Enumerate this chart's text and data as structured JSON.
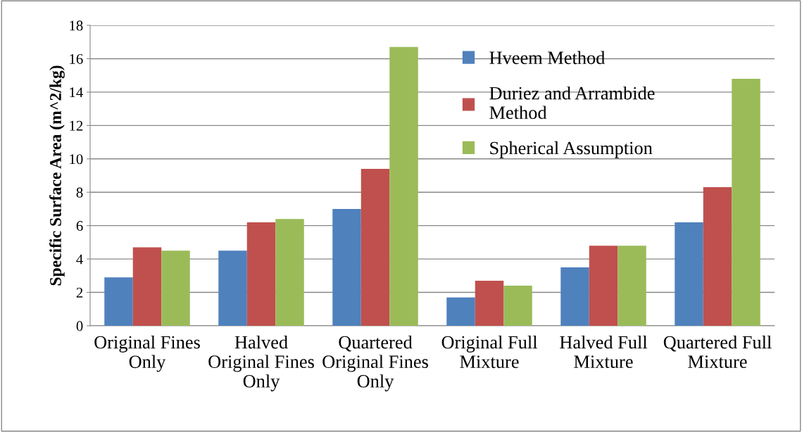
{
  "chart_data": {
    "type": "bar",
    "ylabel": "Specific Surface Area (m^2/kg)",
    "categories": [
      "Original Fines Only",
      "Halved Original Fines Only",
      "Quartered Original Fines Only",
      "Original Full Mixture",
      "Halved Full Mixture",
      "Quartered Full Mixture"
    ],
    "series": [
      {
        "name": "Hveem Method",
        "color": "#4f81bd",
        "values": [
          2.9,
          4.5,
          7.0,
          1.7,
          3.5,
          6.2
        ]
      },
      {
        "name": "Duriez and Arrambide Method",
        "color": "#c0504d",
        "values": [
          4.7,
          6.2,
          9.4,
          2.7,
          4.8,
          8.3
        ]
      },
      {
        "name": "Spherical Assumption",
        "color": "#9bbb59",
        "values": [
          4.5,
          6.4,
          16.7,
          2.4,
          4.8,
          14.8
        ]
      }
    ],
    "ylim": [
      0,
      18
    ],
    "yticks": [
      0,
      2,
      4,
      6,
      8,
      10,
      12,
      14,
      16,
      18
    ],
    "grid": "y",
    "legend": "top right"
  }
}
